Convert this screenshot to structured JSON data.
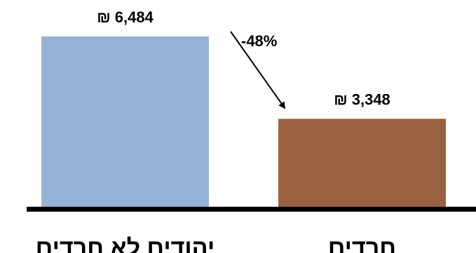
{
  "chart_data": {
    "type": "bar",
    "categories": [
      "יהודים לא חרדים",
      "חרדים"
    ],
    "values": [
      6484,
      3348
    ],
    "value_labels": [
      "₪ 6,484",
      "₪ 3,348"
    ],
    "colors": [
      "#95B3D7",
      "#9A6140"
    ],
    "axis_color": "#000000",
    "annotation": {
      "text": "-48%",
      "from_category": 0,
      "to_category": 1
    },
    "ylim": [
      0,
      6484
    ],
    "grid": false,
    "legend": "none"
  }
}
